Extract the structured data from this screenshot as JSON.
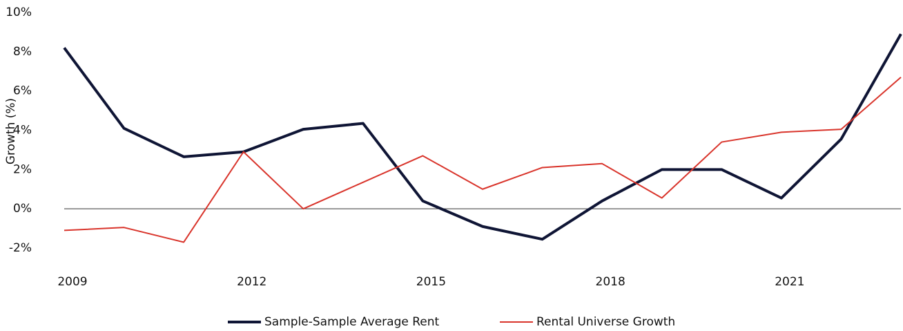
{
  "chart_data": {
    "type": "line",
    "y_label": "Growth (%)",
    "x": [
      2009,
      2010,
      2011,
      2012,
      2013,
      2014,
      2015,
      2016,
      2017,
      2018,
      2019,
      2020,
      2021,
      2022,
      2023
    ],
    "xlim": [
      2009,
      2023
    ],
    "xticks": [
      2009,
      2012,
      2015,
      2018,
      2021
    ],
    "ylim": [
      -2,
      10
    ],
    "yticks": [
      {
        "value": -2,
        "label": "-2%"
      },
      {
        "value": 0,
        "label": "0%"
      },
      {
        "value": 2,
        "label": "2%"
      },
      {
        "value": 4,
        "label": "4%"
      },
      {
        "value": 6,
        "label": "6%"
      },
      {
        "value": 8,
        "label": "8%"
      },
      {
        "value": 10,
        "label": "10%"
      }
    ],
    "zero_line": true,
    "series": [
      {
        "name": "Sample-Sample Average Rent",
        "color": "#0f1535",
        "width": 4,
        "values": [
          8.2,
          4.1,
          2.65,
          2.9,
          4.05,
          4.35,
          0.4,
          -0.9,
          -1.55,
          0.4,
          2.0,
          2.0,
          0.55,
          3.55,
          8.9
        ]
      },
      {
        "name": "Rental Universe Growth",
        "color": "#d9342b",
        "width": 2,
        "values": [
          -1.1,
          -0.95,
          -1.7,
          2.9,
          0.0,
          1.35,
          2.7,
          1.0,
          2.1,
          2.3,
          0.55,
          3.4,
          3.9,
          4.05,
          6.7
        ]
      }
    ]
  }
}
